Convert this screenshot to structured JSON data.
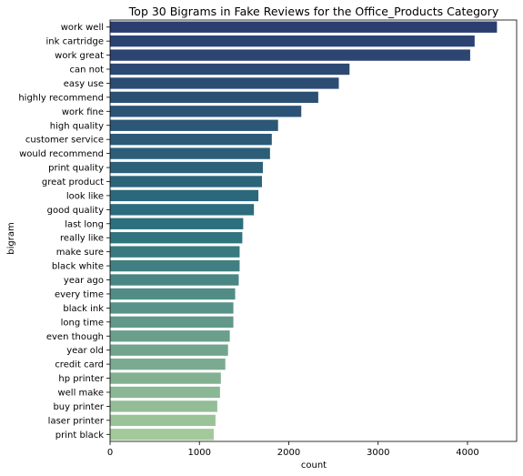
{
  "chart_data": {
    "type": "bar",
    "orientation": "horizontal",
    "title": "Top 30 Bigrams in Fake Reviews for the Office_Products Category",
    "xlabel": "count",
    "ylabel": "bigram",
    "xlim": [
      0,
      4550
    ],
    "xticks": [
      0,
      1000,
      2000,
      3000,
      4000
    ],
    "grid": false,
    "palette": "crest (dark blue to light green)",
    "color_start": "#2c3e70",
    "color_end": "#a3c99a",
    "categories": [
      "work well",
      "ink cartridge",
      "work great",
      "can not",
      "easy use",
      "highly recommend",
      "work fine",
      "high quality",
      "customer service",
      "would recommend",
      "print quality",
      "great product",
      "look like",
      "good quality",
      "last long",
      "really like",
      "make sure",
      "black white",
      "year ago",
      "every time",
      "black ink",
      "long time",
      "even though",
      "year old",
      "credit card",
      "hp printer",
      "well make",
      "buy printer",
      "laser printer",
      "print black"
    ],
    "values": [
      4330,
      4080,
      4030,
      2680,
      2560,
      2330,
      2140,
      1880,
      1810,
      1790,
      1710,
      1700,
      1660,
      1610,
      1490,
      1480,
      1450,
      1450,
      1440,
      1400,
      1380,
      1380,
      1340,
      1320,
      1290,
      1240,
      1230,
      1200,
      1180,
      1160
    ]
  }
}
